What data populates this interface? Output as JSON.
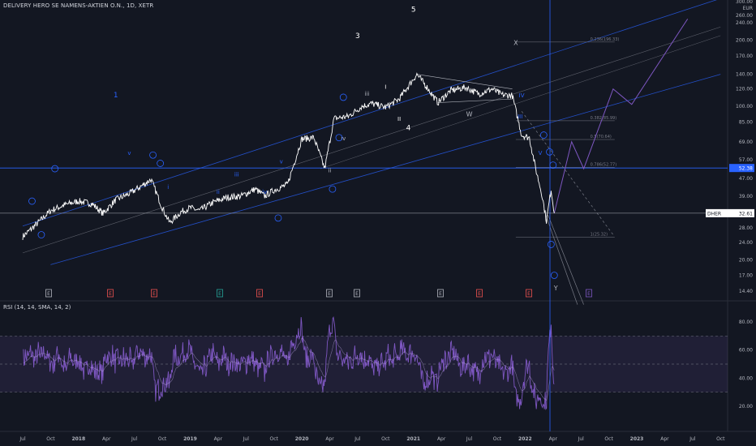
{
  "header": {
    "title": "DELIVERY HERO SE NAMENS-AKTIEN O.N., 1D, XETR",
    "currency": "EUR"
  },
  "rsi": {
    "title": "RSI (14, 14, SMA, 14, 2)",
    "levels": [
      80,
      60,
      40,
      20
    ],
    "band": [
      30,
      70
    ]
  },
  "colors": {
    "background": "#131722",
    "price": "#ffffff",
    "channel": "#2962ff",
    "rsi": "#7e57c2",
    "projection": "#7e57c2",
    "crosshair": "#2962ff"
  },
  "chart_data": [
    {
      "type": "line",
      "name": "price",
      "scale": "log",
      "ylim": [
        12.5,
        300
      ],
      "y_ticks": [
        300,
        260,
        240,
        200,
        170,
        140,
        120,
        100,
        85,
        69,
        57,
        47,
        39,
        32,
        28,
        24,
        20,
        17,
        14.4
      ],
      "x_ticks": [
        "Jul",
        "Oct",
        "2018",
        "Apr",
        "Jul",
        "Oct",
        "2019",
        "Apr",
        "Jul",
        "Oct",
        "2020",
        "Apr",
        "Jul",
        "Oct",
        "2021",
        "Apr",
        "Jul",
        "Oct",
        "2022",
        "Apr",
        "Jul",
        "Oct",
        "2023",
        "Apr",
        "Jul",
        "Oct"
      ],
      "x_tick_start": "2017-07-01",
      "x_tick_step_months": 3,
      "points": [
        [
          "2017-07-01",
          25.5
        ],
        [
          "2017-08-15",
          29.0
        ],
        [
          "2017-10-01",
          33.5
        ],
        [
          "2017-11-15",
          35.5
        ],
        [
          "2018-01-01",
          37.0
        ],
        [
          "2018-02-15",
          36.0
        ],
        [
          "2018-03-20",
          32.5
        ],
        [
          "2018-05-01",
          37.5
        ],
        [
          "2018-06-15",
          40.0
        ],
        [
          "2018-08-01",
          44.0
        ],
        [
          "2018-08-25",
          46.5
        ],
        [
          "2018-10-01",
          34.5
        ],
        [
          "2018-10-25",
          29.5
        ],
        [
          "2018-12-01",
          33.0
        ],
        [
          "2019-01-01",
          34.5
        ],
        [
          "2019-02-01",
          33.5
        ],
        [
          "2019-03-15",
          36.5
        ],
        [
          "2019-05-01",
          38.5
        ],
        [
          "2019-06-15",
          39.0
        ],
        [
          "2019-08-01",
          42.0
        ],
        [
          "2019-09-01",
          39.0
        ],
        [
          "2019-10-01",
          41.5
        ],
        [
          "2019-11-15",
          44.0
        ],
        [
          "2019-12-31",
          71.0
        ],
        [
          "2020-02-10",
          72.0
        ],
        [
          "2020-03-15",
          52.0
        ],
        [
          "2020-04-15",
          88.0
        ],
        [
          "2020-06-01",
          90.0
        ],
        [
          "2020-07-15",
          100.0
        ],
        [
          "2020-08-15",
          103.0
        ],
        [
          "2020-10-01",
          99.0
        ],
        [
          "2020-11-15",
          108.0
        ],
        [
          "2021-01-12",
          140.0
        ],
        [
          "2021-02-15",
          122.0
        ],
        [
          "2021-03-20",
          104.0
        ],
        [
          "2021-05-01",
          118.0
        ],
        [
          "2021-06-20",
          122.0
        ],
        [
          "2021-08-01",
          114.0
        ],
        [
          "2021-09-15",
          120.0
        ],
        [
          "2021-10-15",
          113.0
        ],
        [
          "2021-11-20",
          112.0
        ],
        [
          "2021-12-20",
          74.0
        ],
        [
          "2022-01-15",
          72.0
        ],
        [
          "2022-02-05",
          52.0
        ],
        [
          "2022-02-25",
          40.0
        ],
        [
          "2022-03-10",
          30.0
        ],
        [
          "2022-03-25",
          42.0
        ],
        [
          "2022-04-05",
          32.6
        ]
      ],
      "projection": [
        [
          "2022-04-05",
          32.6
        ],
        [
          "2022-06-01",
          69.0
        ],
        [
          "2022-07-10",
          52.0
        ],
        [
          "2022-10-15",
          120.0
        ],
        [
          "2022-12-15",
          102.0
        ],
        [
          "2023-06-15",
          250.0
        ]
      ],
      "last_price": 32.61,
      "last_label": "DHER",
      "marked_level": 52.38,
      "fib_labels": [
        "0.236(196.33)",
        "0.382(85.99)",
        "0.5(70.64)",
        "0.786(52.77)",
        "1(25.32)"
      ],
      "wave_labels": [
        "1",
        "3",
        "5",
        "4",
        "X",
        "W",
        "Y",
        "i",
        "ii",
        "iii",
        "iv",
        "v",
        "I",
        "II",
        "III",
        "IV",
        "V"
      ],
      "event_markers": [
        "E",
        "E",
        "E",
        "E",
        "E",
        "E",
        "E",
        "E",
        "E",
        "E",
        "E"
      ]
    },
    {
      "type": "line",
      "name": "RSI",
      "ylim": [
        10,
        95
      ],
      "y_ticks": [
        80,
        60,
        40,
        20
      ],
      "band": [
        30,
        70
      ],
      "approx_range": [
        18,
        90
      ]
    }
  ]
}
